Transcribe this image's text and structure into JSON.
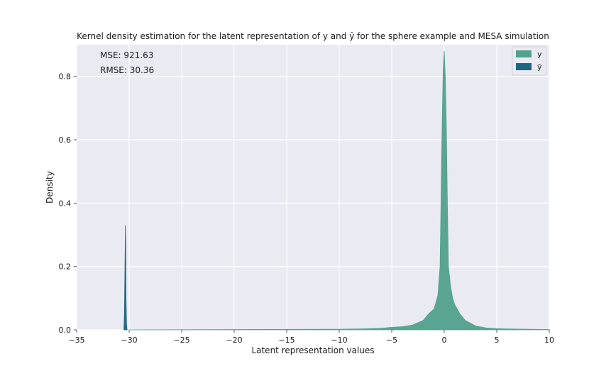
{
  "chart_data": {
    "type": "area",
    "title": "Kernel density estimation for the latent representation of y and ȳ for the sphere example and MESA simulation",
    "xlabel": "Latent representation values",
    "ylabel": "Density",
    "xlim": [
      -35,
      10
    ],
    "ylim": [
      0,
      0.9
    ],
    "x_ticks": [
      -35,
      -30,
      -25,
      -20,
      -15,
      -10,
      -5,
      0,
      5,
      10
    ],
    "x_tick_labels": [
      "−35",
      "−30",
      "−25",
      "−20",
      "−15",
      "−10",
      "−5",
      "0",
      "5",
      "10"
    ],
    "y_ticks": [
      0.0,
      0.2,
      0.4,
      0.6,
      0.8
    ],
    "y_tick_labels": [
      "0.0",
      "0.2",
      "0.4",
      "0.6",
      "0.8"
    ],
    "grid": true,
    "legend_position": "top-right",
    "annotations": [
      "MSE: 921.63",
      "RMSE: 30.36"
    ],
    "series": [
      {
        "name": "y",
        "color": "#52a18c",
        "x": [
          -30,
          -20,
          -10,
          -8,
          -6,
          -5,
          -4,
          -3,
          -2,
          -1.5,
          -1,
          -0.8,
          -0.6,
          -0.4,
          -0.3,
          -0.2,
          -0.1,
          0,
          0.1,
          0.2,
          0.3,
          0.4,
          0.6,
          0.8,
          1,
          1.5,
          2,
          3,
          4,
          5,
          6,
          8,
          10
        ],
        "y": [
          0.0,
          0.001,
          0.002,
          0.003,
          0.005,
          0.008,
          0.01,
          0.015,
          0.03,
          0.05,
          0.065,
          0.085,
          0.11,
          0.2,
          0.42,
          0.65,
          0.82,
          0.88,
          0.8,
          0.64,
          0.4,
          0.2,
          0.14,
          0.1,
          0.08,
          0.05,
          0.03,
          0.012,
          0.006,
          0.004,
          0.003,
          0.002,
          0.001
        ]
      },
      {
        "name": "ȳ",
        "color": "#1d6580",
        "x": [
          -30.5,
          -30.45,
          -30.4,
          -30.36,
          -30.33,
          -30.3,
          -30.25,
          -30.2
        ],
        "y": [
          0.0,
          0.05,
          0.2,
          0.33,
          0.26,
          0.1,
          0.02,
          0.0
        ]
      }
    ]
  }
}
